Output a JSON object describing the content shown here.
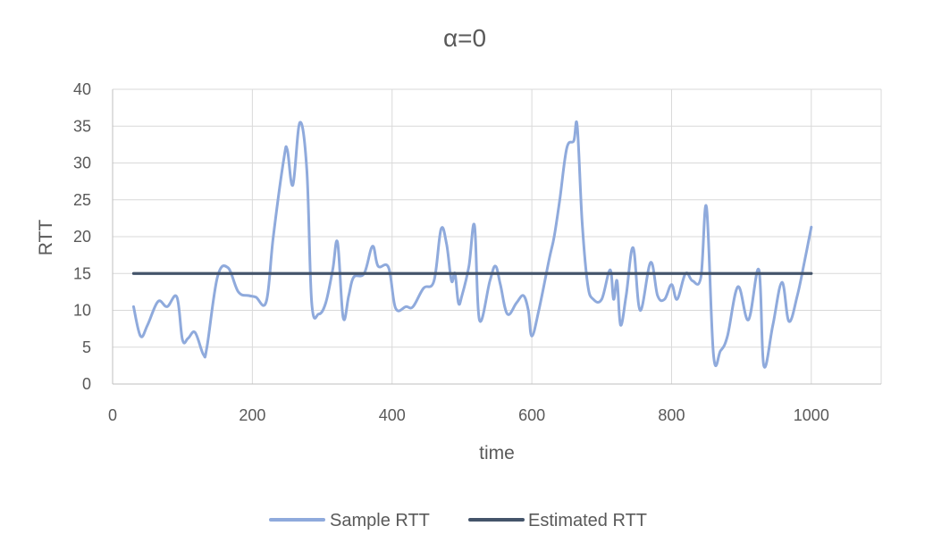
{
  "chart_data": {
    "type": "line",
    "title": "α=0",
    "xlabel": "time",
    "ylabel": "RTT",
    "xlim": [
      0,
      1100
    ],
    "ylim": [
      0,
      40
    ],
    "xticks": [
      0,
      200,
      400,
      600,
      800,
      1000
    ],
    "yticks": [
      0,
      5,
      10,
      15,
      20,
      25,
      30,
      35,
      40
    ],
    "grid": true,
    "legend_position": "bottom",
    "series": [
      {
        "name": "Sample RTT",
        "color": "#8faadc",
        "points": [
          [
            30,
            10.5
          ],
          [
            40,
            6.5
          ],
          [
            50,
            8
          ],
          [
            65,
            11.2
          ],
          [
            78,
            10.5
          ],
          [
            92,
            11.8
          ],
          [
            100,
            6
          ],
          [
            108,
            6.2
          ],
          [
            118,
            7
          ],
          [
            130,
            4
          ],
          [
            135,
            5
          ],
          [
            150,
            14.5
          ],
          [
            165,
            15.8
          ],
          [
            180,
            12.5
          ],
          [
            195,
            12
          ],
          [
            205,
            11.8
          ],
          [
            220,
            11.2
          ],
          [
            230,
            20
          ],
          [
            245,
            30.5
          ],
          [
            250,
            31.8
          ],
          [
            258,
            27
          ],
          [
            268,
            35.5
          ],
          [
            278,
            29
          ],
          [
            285,
            11
          ],
          [
            295,
            9.5
          ],
          [
            305,
            11
          ],
          [
            315,
            15.5
          ],
          [
            322,
            19.2
          ],
          [
            330,
            9
          ],
          [
            338,
            12
          ],
          [
            345,
            14.5
          ],
          [
            360,
            15
          ],
          [
            372,
            18.7
          ],
          [
            380,
            16
          ],
          [
            395,
            15.8
          ],
          [
            405,
            10.3
          ],
          [
            420,
            10.5
          ],
          [
            430,
            10.5
          ],
          [
            445,
            13
          ],
          [
            460,
            14
          ],
          [
            470,
            21
          ],
          [
            478,
            19
          ],
          [
            485,
            14
          ],
          [
            490,
            15
          ],
          [
            495,
            11
          ],
          [
            500,
            12
          ],
          [
            510,
            16
          ],
          [
            518,
            21.5
          ],
          [
            525,
            8.7
          ],
          [
            540,
            14
          ],
          [
            548,
            16
          ],
          [
            555,
            13.5
          ],
          [
            565,
            9.5
          ],
          [
            578,
            11
          ],
          [
            588,
            12
          ],
          [
            595,
            10
          ],
          [
            600,
            6.5
          ],
          [
            610,
            10
          ],
          [
            625,
            17
          ],
          [
            632,
            20
          ],
          [
            640,
            25
          ],
          [
            650,
            32
          ],
          [
            660,
            33
          ],
          [
            665,
            35
          ],
          [
            672,
            22
          ],
          [
            680,
            13.5
          ],
          [
            688,
            11.5
          ],
          [
            700,
            11.5
          ],
          [
            712,
            15.5
          ],
          [
            717,
            11.5
          ],
          [
            722,
            14
          ],
          [
            727,
            8
          ],
          [
            735,
            12
          ],
          [
            745,
            18.5
          ],
          [
            755,
            10
          ],
          [
            770,
            16.5
          ],
          [
            780,
            12
          ],
          [
            790,
            11.5
          ],
          [
            800,
            13.5
          ],
          [
            808,
            11.5
          ],
          [
            820,
            15
          ],
          [
            830,
            14
          ],
          [
            842,
            14.5
          ],
          [
            850,
            24
          ],
          [
            860,
            4
          ],
          [
            870,
            4.5
          ],
          [
            880,
            6.5
          ],
          [
            895,
            13.2
          ],
          [
            910,
            8.7
          ],
          [
            925,
            15.5
          ],
          [
            932,
            2.5
          ],
          [
            945,
            8
          ],
          [
            958,
            13.8
          ],
          [
            968,
            8.5
          ],
          [
            980,
            12
          ],
          [
            990,
            16.5
          ],
          [
            1000,
            21.3
          ]
        ]
      },
      {
        "name": "Estimated RTT",
        "color": "#44546a",
        "points": [
          [
            30,
            15
          ],
          [
            1000,
            15
          ]
        ]
      }
    ]
  }
}
